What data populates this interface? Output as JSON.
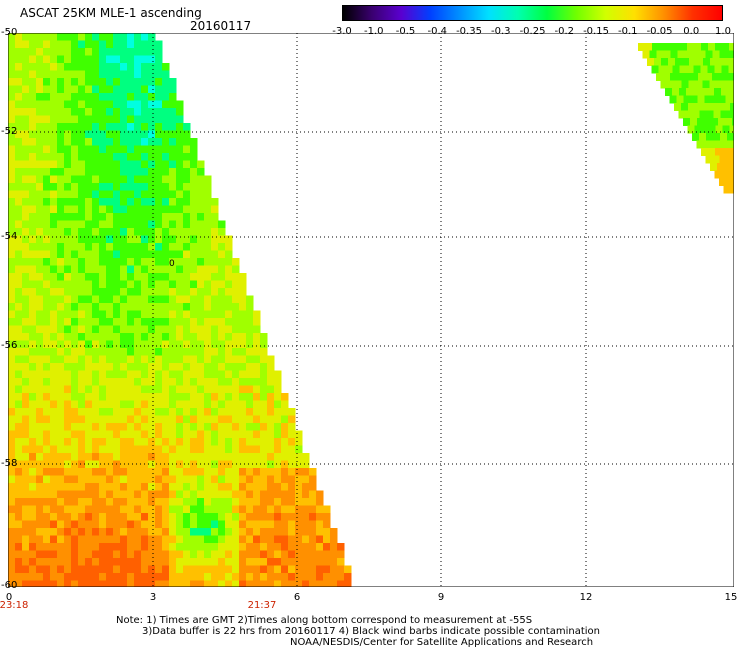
{
  "header": {
    "title": "ASCAT 25KM MLE-1 ascending",
    "date": "20160117"
  },
  "colorbar": {
    "labels": [
      "-3.0",
      "-1.0",
      "-0.5",
      "-0.4",
      "-0.35",
      "-0.3",
      "-0.25",
      "-0.2",
      "-0.15",
      "-0.1",
      "-0.05",
      "0.0",
      "1.0"
    ],
    "colors": [
      "#000000",
      "#3a0070",
      "#5a00d0",
      "#0040ff",
      "#0090ff",
      "#00e0ff",
      "#00ffb0",
      "#00ff40",
      "#70ff00",
      "#d0ff00",
      "#ffe000",
      "#ff9000",
      "#ff3000",
      "#ff0000"
    ]
  },
  "map": {
    "lat_labels": [
      "-50",
      "-52",
      "-54",
      "-56",
      "-58",
      "-60"
    ],
    "lon_labels": [
      "0",
      "3",
      "6",
      "9",
      "12",
      "15"
    ],
    "time_labels": [
      "23:18",
      "21:37"
    ],
    "contour_label": "0",
    "color_scale": [
      "#00ffe0",
      "#00ff80",
      "#40ff00",
      "#a0ff00",
      "#e0f000",
      "#ffc000",
      "#ff9000",
      "#ff6000"
    ]
  },
  "notes": {
    "line1": "Note: 1) Times are GMT 2)Times along bottom correspond to measurement at -55S",
    "line2": "3)Data buffer is 22 hrs from 20160117 4) Black wind barbs indicate possible contamination",
    "line3": "NOAA/NESDIS/Center for Satellite Applications and Research"
  }
}
